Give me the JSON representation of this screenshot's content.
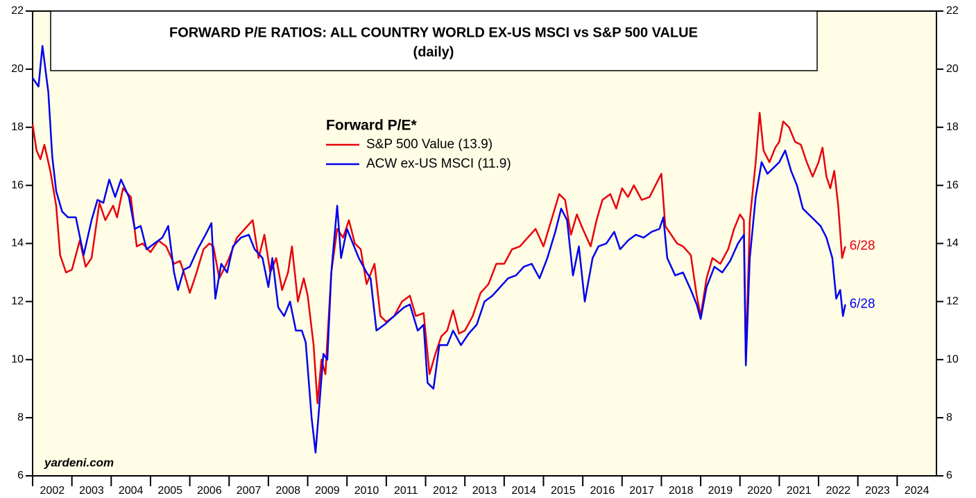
{
  "chart_data": {
    "type": "line",
    "title": "FORWARD P/E RATIOS: ALL COUNTRY WORLD EX-US MSCI vs S&P 500 VALUE",
    "subtitle": "(daily)",
    "legend_title": "Forward P/E*",
    "source": "yardeni.com",
    "xlim": [
      2002,
      2025
    ],
    "xticks": [
      2002,
      2003,
      2004,
      2005,
      2006,
      2007,
      2008,
      2009,
      2010,
      2011,
      2012,
      2013,
      2014,
      2015,
      2016,
      2017,
      2018,
      2019,
      2020,
      2021,
      2022,
      2023,
      2024
    ],
    "ylim": [
      6,
      22
    ],
    "yticks": [
      6,
      8,
      10,
      12,
      14,
      16,
      18,
      20,
      22
    ],
    "background": "#fffde6",
    "annotations": [
      {
        "text": "6/28",
        "color": "#e8000b"
      },
      {
        "text": "6/28",
        "color": "#0000ee"
      }
    ],
    "series": [
      {
        "name": "S&P 500 Value (13.9)",
        "color": "#e8000b",
        "x": [
          2002.0,
          2002.1,
          2002.2,
          2002.3,
          2002.45,
          2002.6,
          2002.7,
          2002.85,
          2003.0,
          2003.2,
          2003.35,
          2003.5,
          2003.7,
          2003.85,
          2004.05,
          2004.15,
          2004.3,
          2004.5,
          2004.65,
          2004.8,
          2005.0,
          2005.2,
          2005.4,
          2005.6,
          2005.75,
          2005.85,
          2006.0,
          2006.15,
          2006.35,
          2006.5,
          2006.6,
          2006.75,
          2006.9,
          2007.0,
          2007.2,
          2007.4,
          2007.6,
          2007.75,
          2007.9,
          2008.05,
          2008.2,
          2008.35,
          2008.5,
          2008.6,
          2008.75,
          2008.9,
          2009.0,
          2009.15,
          2009.25,
          2009.35,
          2009.45,
          2009.6,
          2009.75,
          2009.9,
          2010.05,
          2010.2,
          2010.35,
          2010.5,
          2010.7,
          2010.85,
          2011.0,
          2011.2,
          2011.4,
          2011.6,
          2011.75,
          2011.95,
          2012.1,
          2012.25,
          2012.4,
          2012.55,
          2012.7,
          2012.85,
          2013.0,
          2013.2,
          2013.4,
          2013.6,
          2013.8,
          2014.0,
          2014.2,
          2014.4,
          2014.6,
          2014.8,
          2015.0,
          2015.2,
          2015.4,
          2015.55,
          2015.7,
          2015.85,
          2016.0,
          2016.2,
          2016.35,
          2016.5,
          2016.7,
          2016.85,
          2017.0,
          2017.15,
          2017.3,
          2017.5,
          2017.7,
          2017.85,
          2018.0,
          2018.1,
          2018.25,
          2018.4,
          2018.55,
          2018.75,
          2018.9,
          2019.0,
          2019.15,
          2019.3,
          2019.5,
          2019.7,
          2019.85,
          2020.0,
          2020.1,
          2020.15,
          2020.25,
          2020.4,
          2020.5,
          2020.6,
          2020.75,
          2020.9,
          2021.0,
          2021.1,
          2021.25,
          2021.4,
          2021.55,
          2021.7,
          2021.85,
          2022.0,
          2022.1,
          2022.2,
          2022.3,
          2022.4,
          2022.5,
          2022.6,
          2022.68
        ],
        "values": [
          18.1,
          17.2,
          16.9,
          17.4,
          16.5,
          15.3,
          13.6,
          13.0,
          13.1,
          14.1,
          13.2,
          13.5,
          15.4,
          14.8,
          15.3,
          14.9,
          15.9,
          15.6,
          13.9,
          14.0,
          13.7,
          14.1,
          13.9,
          13.3,
          13.4,
          13.0,
          12.3,
          12.9,
          13.8,
          14.0,
          13.9,
          12.8,
          13.2,
          13.5,
          14.2,
          14.5,
          14.8,
          13.5,
          14.3,
          13.0,
          13.5,
          12.4,
          13.0,
          13.9,
          12.0,
          12.8,
          12.2,
          10.5,
          8.5,
          10.0,
          9.5,
          13.0,
          14.5,
          14.2,
          14.8,
          14.0,
          13.8,
          12.6,
          13.3,
          11.5,
          11.3,
          11.5,
          12.0,
          12.2,
          11.5,
          11.6,
          9.5,
          10.2,
          10.8,
          11.0,
          11.7,
          10.9,
          11.0,
          11.5,
          12.3,
          12.6,
          13.3,
          13.3,
          13.8,
          13.9,
          14.2,
          14.5,
          13.9,
          14.8,
          15.7,
          15.5,
          14.3,
          15.0,
          14.5,
          13.9,
          14.8,
          15.5,
          15.7,
          15.2,
          15.9,
          15.6,
          16.0,
          15.5,
          15.6,
          16.0,
          16.4,
          14.6,
          14.3,
          14.0,
          13.9,
          13.6,
          12.2,
          11.5,
          12.8,
          13.5,
          13.3,
          13.8,
          14.5,
          15.0,
          14.8,
          10.0,
          14.8,
          16.8,
          18.5,
          17.2,
          16.8,
          17.3,
          17.5,
          18.2,
          18.0,
          17.5,
          17.4,
          16.8,
          16.3,
          16.8,
          17.3,
          16.3,
          15.9,
          16.5,
          15.3,
          13.5,
          13.9
        ]
      },
      {
        "name": "ACW ex-US MSCI (11.9)",
        "color": "#0000ee",
        "x": [
          2002.0,
          2002.15,
          2002.25,
          2002.4,
          2002.5,
          2002.6,
          2002.75,
          2002.9,
          2003.1,
          2003.3,
          2003.5,
          2003.65,
          2003.8,
          2003.95,
          2004.1,
          2004.25,
          2004.45,
          2004.6,
          2004.75,
          2004.9,
          2005.1,
          2005.3,
          2005.45,
          2005.6,
          2005.7,
          2005.85,
          2006.0,
          2006.2,
          2006.4,
          2006.55,
          2006.65,
          2006.8,
          2006.95,
          2007.1,
          2007.3,
          2007.5,
          2007.65,
          2007.85,
          2008.0,
          2008.1,
          2008.25,
          2008.4,
          2008.55,
          2008.7,
          2008.85,
          2008.95,
          2009.1,
          2009.2,
          2009.3,
          2009.4,
          2009.5,
          2009.6,
          2009.75,
          2009.85,
          2010.0,
          2010.15,
          2010.3,
          2010.5,
          2010.6,
          2010.75,
          2010.95,
          2011.2,
          2011.45,
          2011.6,
          2011.8,
          2011.95,
          2012.05,
          2012.2,
          2012.35,
          2012.55,
          2012.7,
          2012.9,
          2013.1,
          2013.3,
          2013.5,
          2013.7,
          2013.9,
          2014.1,
          2014.3,
          2014.5,
          2014.7,
          2014.9,
          2015.1,
          2015.3,
          2015.45,
          2015.6,
          2015.75,
          2015.9,
          2016.05,
          2016.25,
          2016.4,
          2016.6,
          2016.8,
          2016.95,
          2017.15,
          2017.35,
          2017.55,
          2017.75,
          2017.95,
          2018.05,
          2018.15,
          2018.35,
          2018.55,
          2018.75,
          2018.9,
          2019.0,
          2019.15,
          2019.35,
          2019.55,
          2019.75,
          2019.95,
          2020.1,
          2020.15,
          2020.25,
          2020.4,
          2020.55,
          2020.7,
          2020.85,
          2021.0,
          2021.15,
          2021.3,
          2021.45,
          2021.6,
          2021.75,
          2021.9,
          2022.05,
          2022.2,
          2022.35,
          2022.45,
          2022.55,
          2022.62,
          2022.68
        ],
        "values": [
          19.7,
          19.4,
          20.8,
          19.2,
          17.0,
          15.8,
          15.1,
          14.9,
          14.9,
          13.6,
          14.8,
          15.5,
          15.4,
          16.2,
          15.6,
          16.2,
          15.6,
          14.5,
          14.6,
          13.8,
          14.0,
          14.2,
          14.6,
          13.0,
          12.4,
          13.1,
          13.2,
          13.8,
          14.3,
          14.7,
          12.1,
          13.3,
          13.0,
          13.9,
          14.2,
          14.3,
          13.8,
          13.5,
          12.5,
          13.5,
          11.8,
          11.5,
          12.0,
          11.0,
          11.0,
          10.6,
          8.0,
          6.8,
          8.5,
          10.2,
          10.0,
          13.0,
          15.3,
          13.5,
          14.5,
          14.0,
          13.5,
          13.0,
          12.8,
          11.0,
          11.2,
          11.5,
          11.8,
          11.9,
          11.0,
          11.2,
          9.2,
          9.0,
          10.5,
          10.5,
          11.0,
          10.5,
          10.9,
          11.2,
          12.0,
          12.2,
          12.5,
          12.8,
          12.9,
          13.2,
          13.3,
          12.8,
          13.5,
          14.4,
          15.2,
          14.8,
          12.9,
          13.9,
          12.0,
          13.5,
          13.9,
          14.0,
          14.4,
          13.8,
          14.1,
          14.3,
          14.2,
          14.4,
          14.5,
          14.9,
          13.5,
          12.9,
          13.0,
          12.4,
          11.9,
          11.4,
          12.5,
          13.2,
          13.0,
          13.4,
          14.0,
          14.3,
          9.8,
          13.5,
          15.6,
          16.8,
          16.4,
          16.6,
          16.8,
          17.2,
          16.5,
          16.0,
          15.2,
          15.0,
          14.8,
          14.6,
          14.2,
          13.5,
          12.1,
          12.4,
          11.5,
          11.9
        ]
      }
    ]
  }
}
